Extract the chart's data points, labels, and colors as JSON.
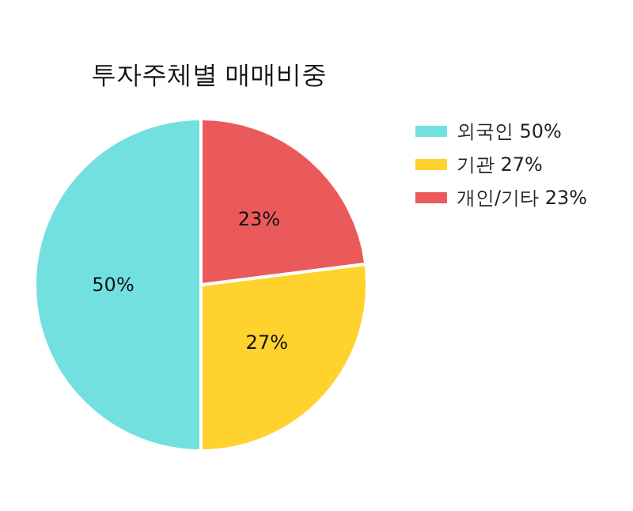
{
  "chart_data": {
    "type": "pie",
    "title": "투자주체별 매매비중",
    "categories": [
      "외국인 50%",
      "기관 27%",
      "개인/기타 23%"
    ],
    "values": [
      50,
      27,
      23
    ],
    "colors": [
      "#73e0e0",
      "#ffd22e",
      "#eb5a5a"
    ],
    "value_labels": [
      "50%",
      "27%",
      "23%"
    ],
    "legend": "top right"
  }
}
